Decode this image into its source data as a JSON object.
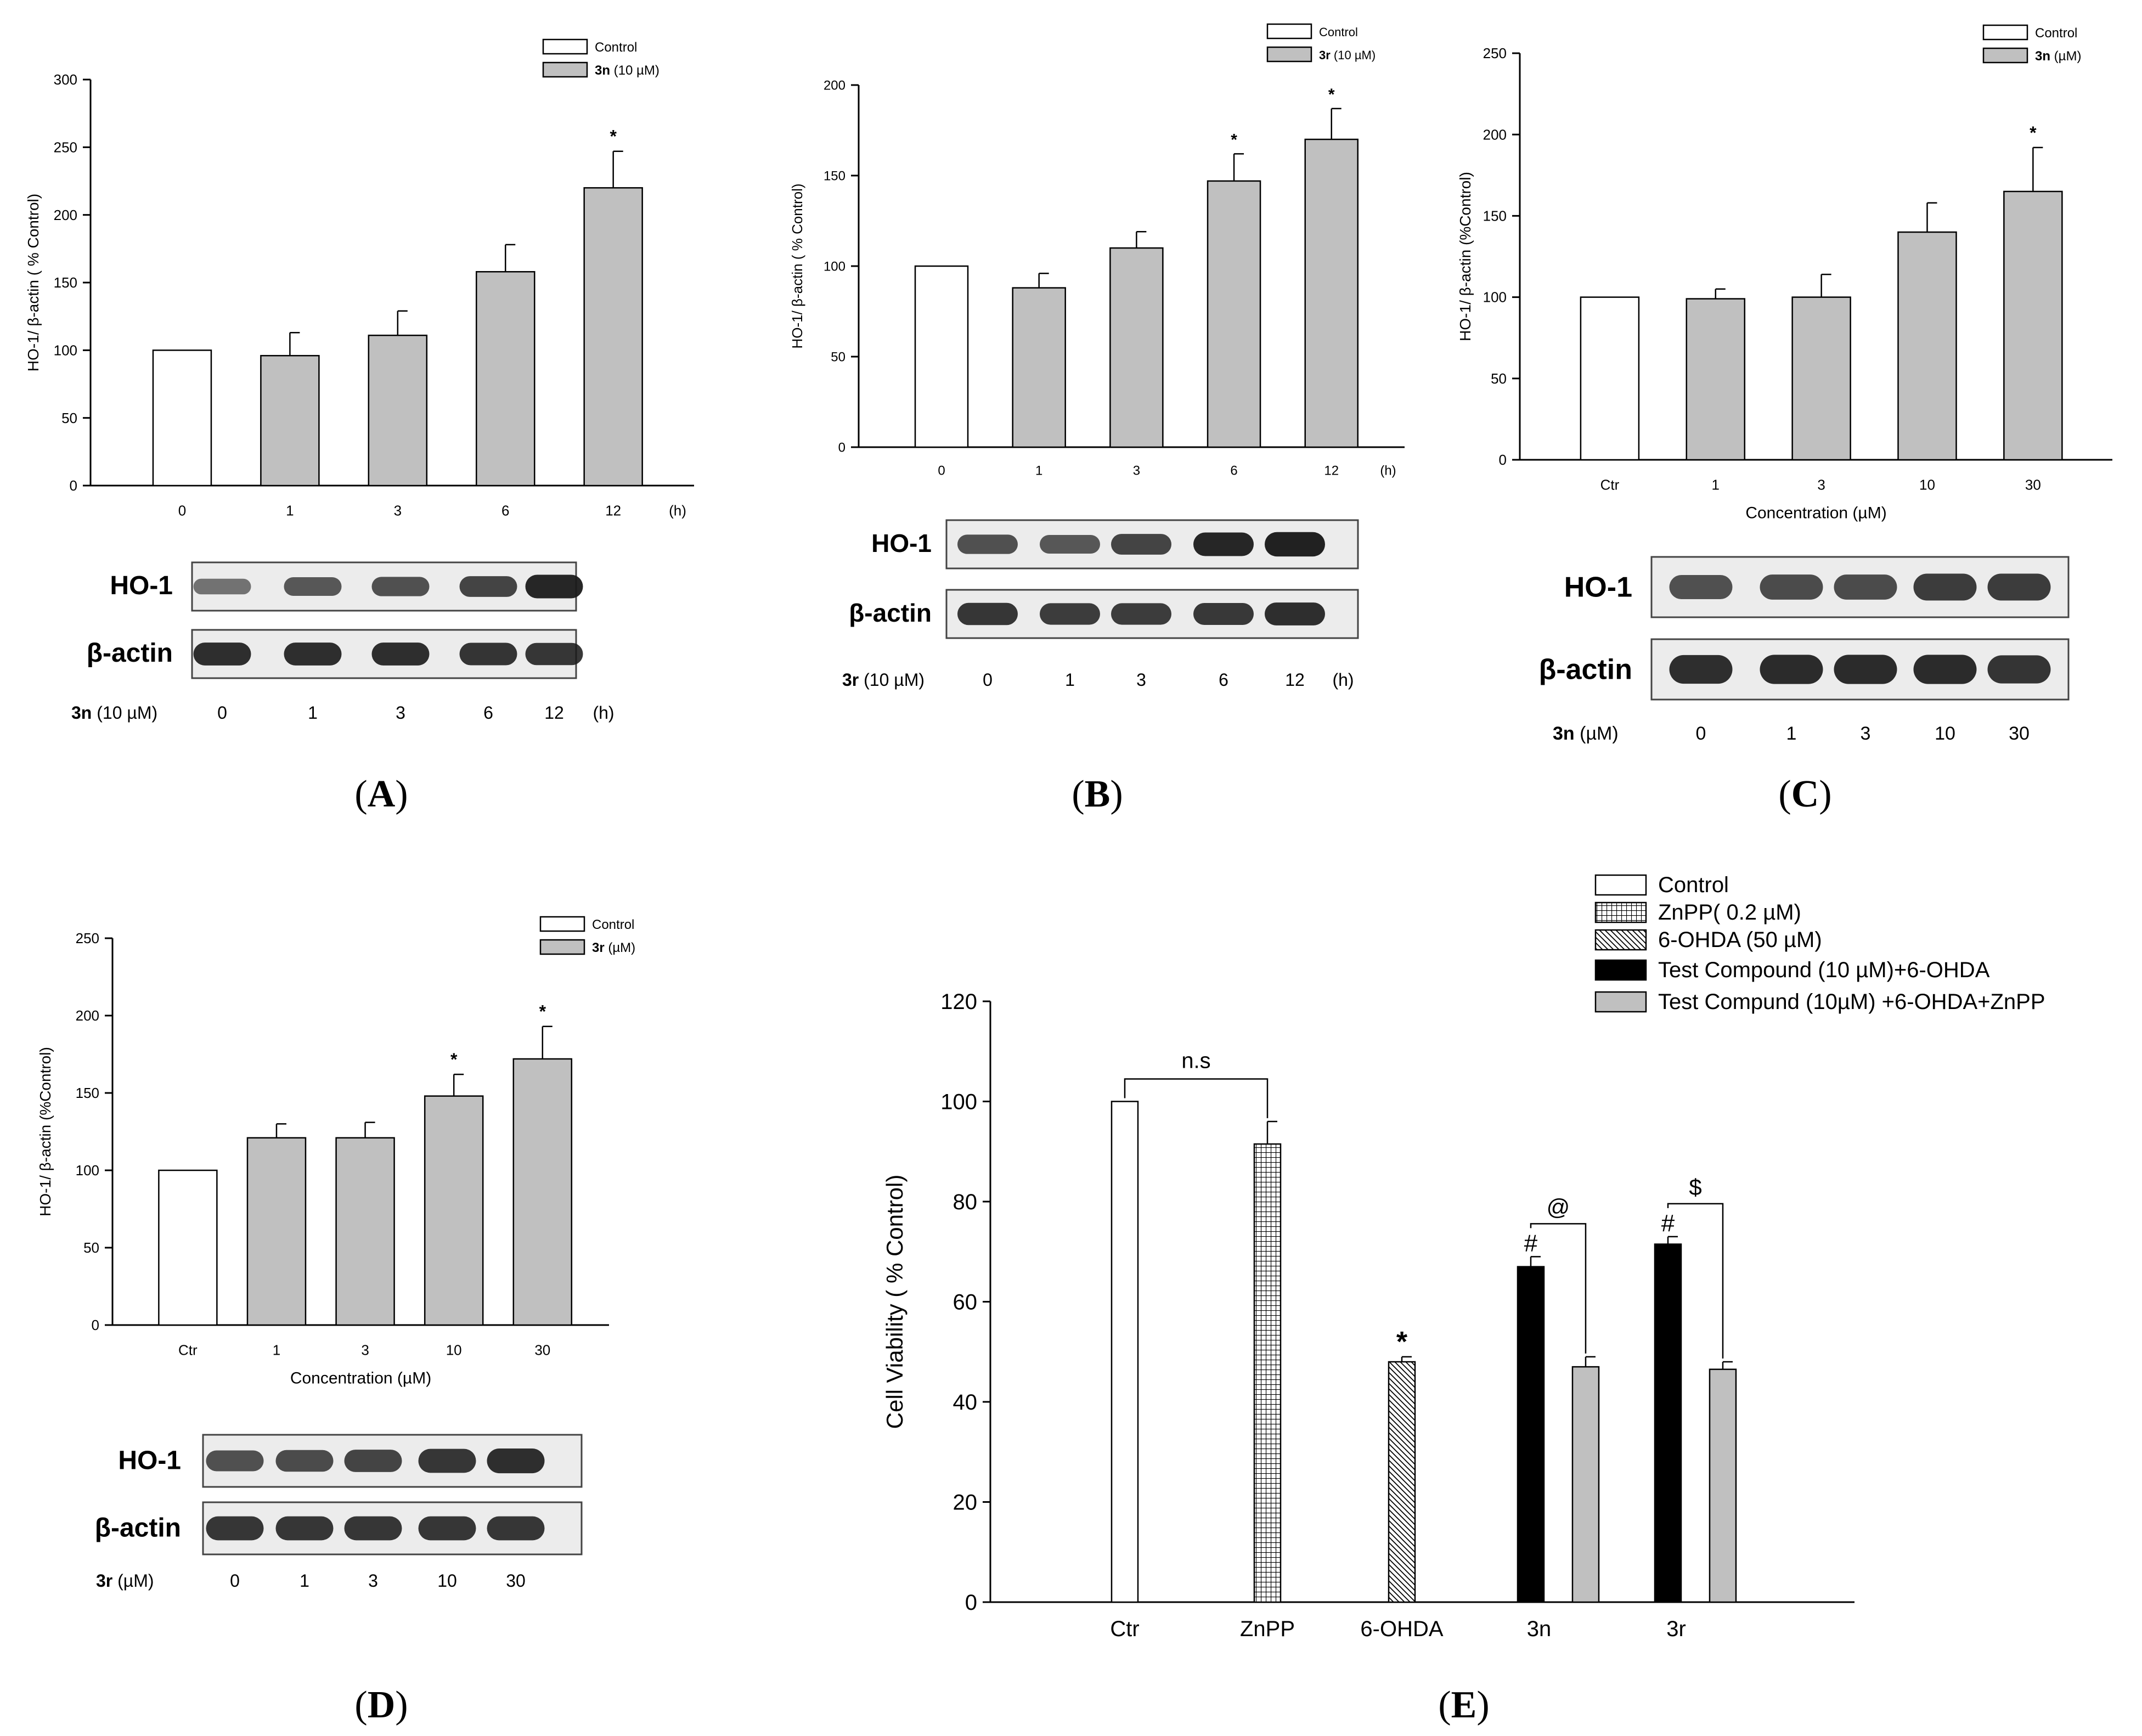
{
  "colors": {
    "control": "#ffffff",
    "treated": "#c0c0c0",
    "black": "#000000",
    "axis": "#000000",
    "blot_bg": "#ececec",
    "band": "#1a1a1a"
  },
  "panels": [
    {
      "id": "A",
      "label_open": "(",
      "label_letter": "A",
      "label_close": ")",
      "legend": [
        {
          "pre": "",
          "text": "Control",
          "style": "control"
        },
        {
          "pre": "3n",
          "text": " (10 µM)",
          "style": "treated"
        }
      ],
      "blot": {
        "rows": [
          {
            "label": "HO-1",
            "bands": [
              0.35,
              0.55,
              0.6,
              0.7,
              0.9
            ]
          },
          {
            "label": "β-actin",
            "bands": [
              0.85,
              0.85,
              0.85,
              0.82,
              0.8
            ]
          }
        ],
        "footer_compound": "3n",
        "footer_unit": " (10 µM)",
        "footer_ticks": [
          "0",
          "1",
          "3",
          "6",
          "12"
        ],
        "footer_suffix": "(h)"
      }
    },
    {
      "id": "B",
      "label_open": "(",
      "label_letter": "B",
      "label_close": ")",
      "legend": [
        {
          "pre": "",
          "text": "Control",
          "style": "control"
        },
        {
          "pre": "3r",
          "text": " (10 µM)",
          "style": "treated"
        }
      ],
      "blot": {
        "rows": [
          {
            "label": "HO-1",
            "bands": [
              0.6,
              0.55,
              0.7,
              0.9,
              0.95
            ]
          },
          {
            "label": "β-actin",
            "bands": [
              0.8,
              0.75,
              0.75,
              0.78,
              0.85
            ]
          }
        ],
        "footer_compound": "3r",
        "footer_unit": " (10 µM)",
        "footer_ticks": [
          "0",
          "1",
          "3",
          "6",
          "12"
        ],
        "footer_suffix": "(h)"
      }
    },
    {
      "id": "C",
      "label_open": "(",
      "label_letter": "C",
      "label_close": ")",
      "legend": [
        {
          "pre": "",
          "text": "Control",
          "style": "control"
        },
        {
          "pre": "3n",
          "text": " (µM)",
          "style": "treated"
        }
      ],
      "blot": {
        "rows": [
          {
            "label": "HO-1",
            "bands": [
              0.6,
              0.65,
              0.65,
              0.75,
              0.75
            ]
          },
          {
            "label": "β-actin",
            "bands": [
              0.85,
              0.88,
              0.88,
              0.88,
              0.82
            ]
          }
        ],
        "footer_compound": "3n",
        "footer_unit": " (µM)",
        "footer_ticks": [
          "0",
          "1",
          "3",
          "10",
          "30"
        ],
        "footer_suffix": ""
      }
    },
    {
      "id": "D",
      "label_open": "(",
      "label_letter": "D",
      "label_close": ")",
      "legend": [
        {
          "pre": "",
          "text": "Control",
          "style": "control"
        },
        {
          "pre": "3r",
          "text": " (µM)",
          "style": "treated"
        }
      ],
      "blot": {
        "rows": [
          {
            "label": "HO-1",
            "bands": [
              0.6,
              0.65,
              0.7,
              0.8,
              0.85
            ]
          },
          {
            "label": "β-actin",
            "bands": [
              0.8,
              0.8,
              0.8,
              0.8,
              0.8
            ]
          }
        ],
        "footer_compound": "3r",
        "footer_unit": " (µM)",
        "footer_ticks": [
          "0",
          "1",
          "3",
          "10",
          "30"
        ],
        "footer_suffix": ""
      }
    },
    {
      "id": "E",
      "label_open": "(",
      "label_letter": "E",
      "label_close": ")",
      "legend": [
        {
          "pre": "",
          "text": "Control",
          "style": "control"
        },
        {
          "pre": "",
          "text": "ZnPP( 0.2 µM)",
          "style": "grid"
        },
        {
          "pre": "",
          "text": "6-OHDA (50 µM)",
          "style": "hatch"
        },
        {
          "pre": "",
          "text": "Test Compound (10 µM)+6-OHDA",
          "style": "black"
        },
        {
          "pre": "",
          "text": "Test Compund (10µM) +6-OHDA+ZnPP",
          "style": "treated"
        }
      ]
    }
  ],
  "chart_data": [
    {
      "type": "bar",
      "panel": "A",
      "title": "",
      "xlabel": "",
      "ylabel": "HO-1/ β-actin ( % Control)",
      "categories": [
        "0",
        "1",
        "3",
        "6",
        "12"
      ],
      "x_unit": "(h)",
      "values": [
        100,
        96,
        111,
        158,
        220
      ],
      "errors": [
        0,
        17,
        18,
        20,
        27
      ],
      "significance": [
        "",
        "",
        "",
        "",
        "*"
      ],
      "ylim": [
        0,
        300
      ],
      "yticks": [
        0,
        50,
        100,
        150,
        200,
        250,
        300
      ]
    },
    {
      "type": "bar",
      "panel": "B",
      "title": "",
      "xlabel": "",
      "ylabel": "HO-1/ β-actin ( % Control)",
      "categories": [
        "0",
        "1",
        "3",
        "6",
        "12"
      ],
      "x_unit": "(h)",
      "values": [
        100,
        88,
        110,
        147,
        170
      ],
      "errors": [
        0,
        8,
        9,
        15,
        17
      ],
      "significance": [
        "",
        "",
        "",
        "*",
        "*"
      ],
      "ylim": [
        0,
        200
      ],
      "yticks": [
        0,
        50,
        100,
        150,
        200
      ]
    },
    {
      "type": "bar",
      "panel": "C",
      "title": "",
      "xlabel": "Concentration (µM)",
      "ylabel": "HO-1/ β-actin (%Control)",
      "categories": [
        "Ctr",
        "1",
        "3",
        "10",
        "30"
      ],
      "x_unit": "",
      "values": [
        100,
        99,
        100,
        140,
        165
      ],
      "errors": [
        0,
        6,
        14,
        18,
        27
      ],
      "significance": [
        "",
        "",
        "",
        "",
        "*"
      ],
      "ylim": [
        0,
        250
      ],
      "yticks": [
        0,
        50,
        100,
        150,
        200,
        250
      ]
    },
    {
      "type": "bar",
      "panel": "D",
      "title": "",
      "xlabel": "Concentration (µM)",
      "ylabel": "HO-1/ β-actin (%Control)",
      "categories": [
        "Ctr",
        "1",
        "3",
        "10",
        "30"
      ],
      "x_unit": "",
      "values": [
        100,
        121,
        121,
        148,
        172
      ],
      "errors": [
        0,
        9,
        10,
        14,
        21
      ],
      "significance": [
        "",
        "",
        "",
        "*",
        "*"
      ],
      "ylim": [
        0,
        250
      ],
      "yticks": [
        0,
        50,
        100,
        150,
        200,
        250
      ]
    },
    {
      "type": "bar",
      "panel": "E",
      "title": "",
      "xlabel": "",
      "ylabel": "Cell Viability ( % Control)",
      "categories": [
        "Ctr",
        "ZnPP",
        "6-OHDA",
        "3n",
        "3r"
      ],
      "series": [
        {
          "name": "Control",
          "style": "control",
          "values": [
            100,
            null,
            null,
            null,
            null
          ],
          "errors": [
            0,
            null,
            null,
            null,
            null
          ]
        },
        {
          "name": "ZnPP( 0.2 µM)",
          "style": "grid",
          "values": [
            null,
            91.5,
            null,
            null,
            null
          ],
          "errors": [
            null,
            4.5,
            null,
            null,
            null
          ]
        },
        {
          "name": "6-OHDA (50 µM)",
          "style": "hatch",
          "values": [
            null,
            null,
            48,
            null,
            null
          ],
          "errors": [
            null,
            null,
            1,
            null,
            null
          ]
        },
        {
          "name": "Test Compound (10 µM)+6-OHDA",
          "style": "black",
          "values": [
            null,
            null,
            null,
            67,
            71.5
          ],
          "errors": [
            null,
            null,
            null,
            2,
            1.5
          ]
        },
        {
          "name": "Test Compund (10µM) +6-OHDA+ZnPP",
          "style": "treated",
          "values": [
            null,
            null,
            null,
            47,
            46.5
          ],
          "errors": [
            null,
            null,
            null,
            2,
            1.5
          ]
        }
      ],
      "annotations": {
        "ns": "n.s",
        "star": "*",
        "hash": "#",
        "at": "@",
        "dollar": "$"
      },
      "ylim": [
        0,
        120
      ],
      "yticks": [
        0,
        20,
        40,
        60,
        80,
        100,
        120
      ]
    }
  ]
}
